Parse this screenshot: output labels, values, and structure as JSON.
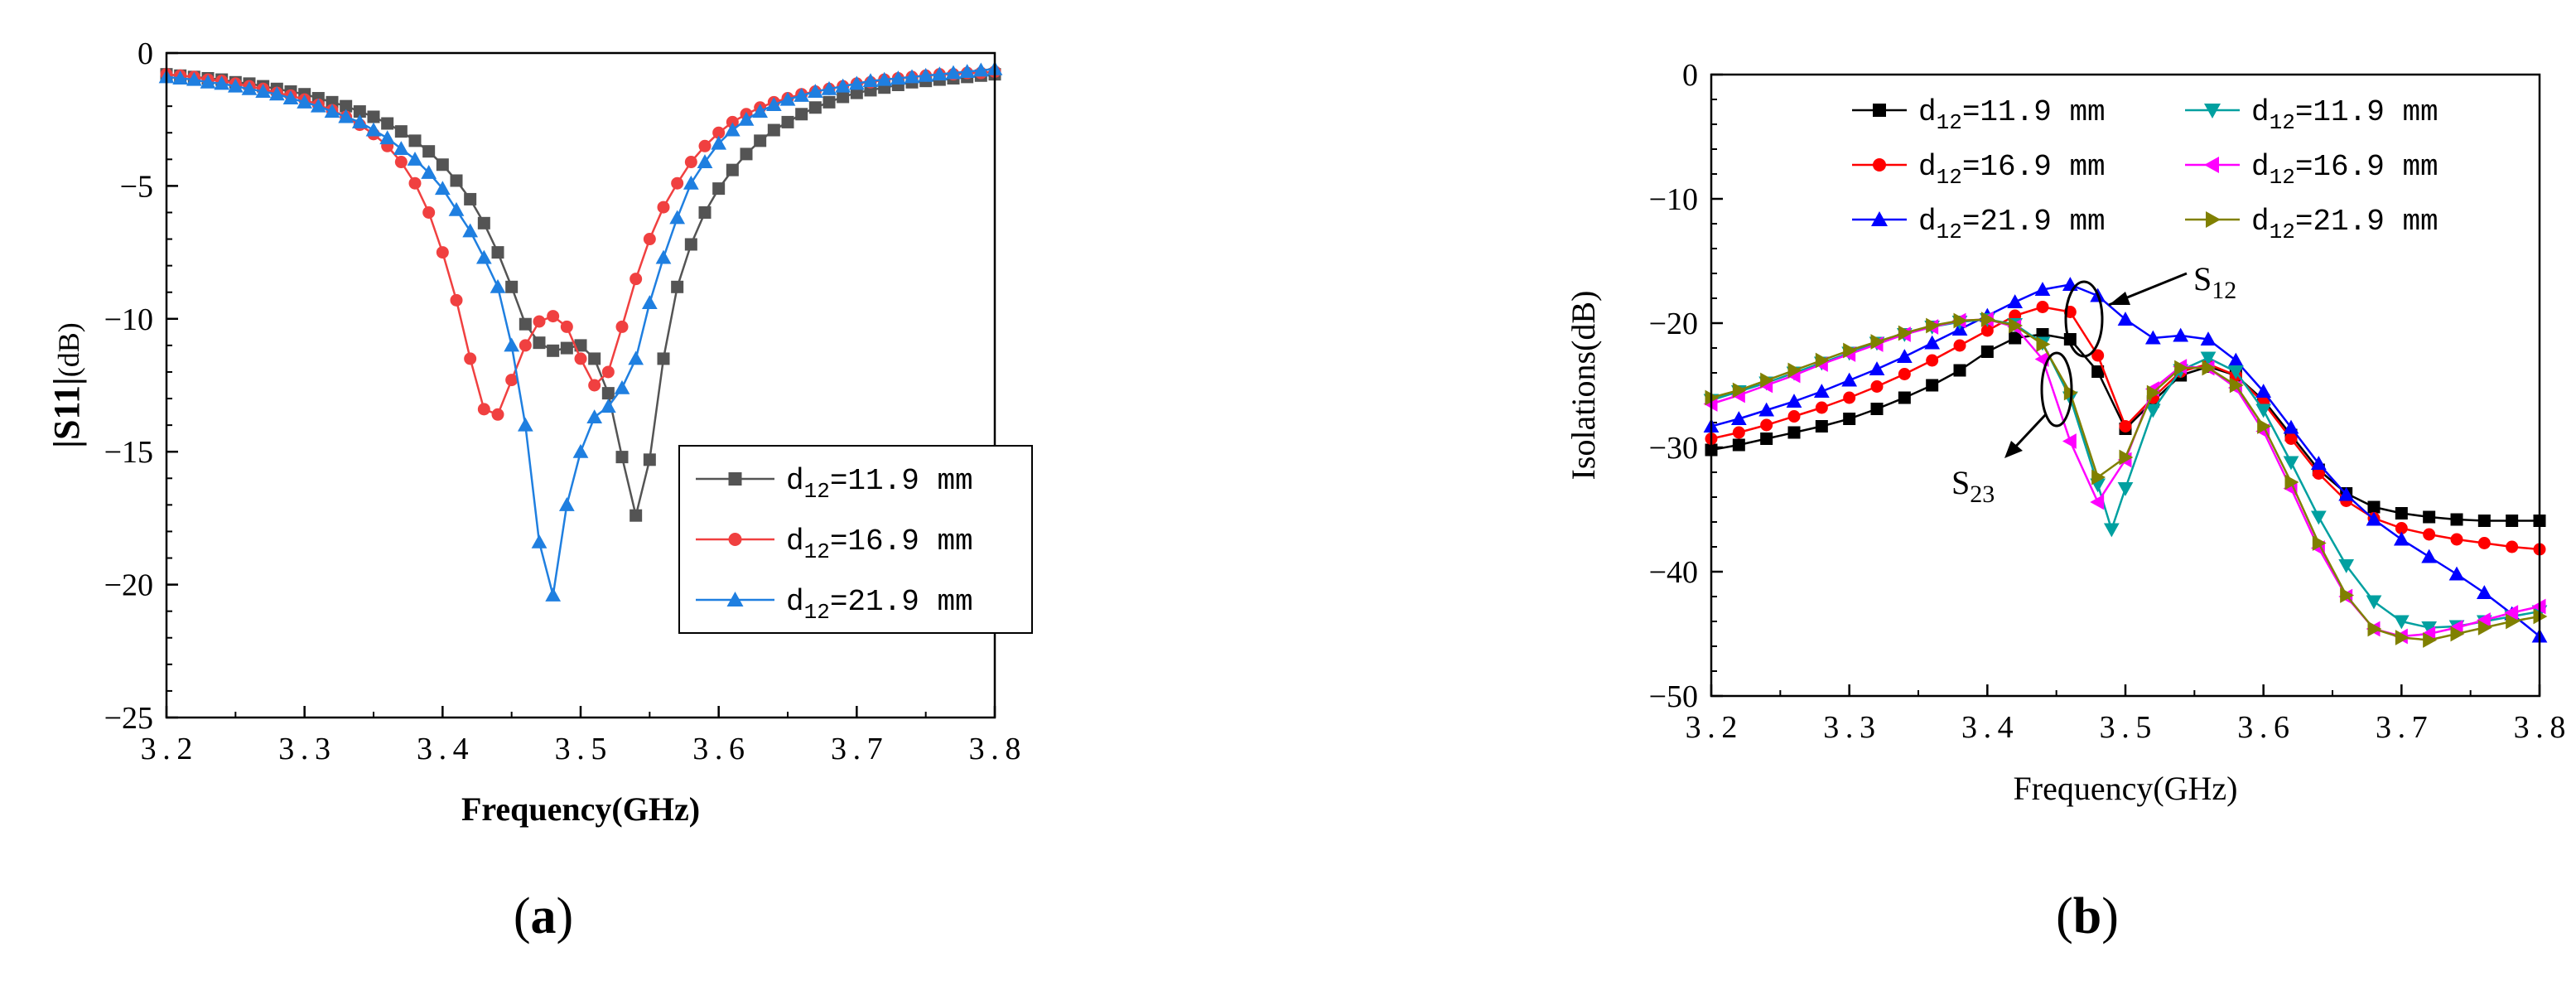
{
  "panels": {
    "a": {
      "label_open": "(",
      "label_letter": "a",
      "label_close": ")"
    },
    "b": {
      "label_open": "(",
      "label_letter": "b",
      "label_close": ")"
    }
  },
  "chart_data": [
    {
      "type": "line",
      "panel": "a",
      "title": "",
      "xlabel": "Frequency(GHz)",
      "ylabel_main": "|S11|",
      "ylabel_unit": "(dB)",
      "xlim": [
        3.2,
        3.8
      ],
      "ylim": [
        -25,
        0
      ],
      "xticks": [
        3.2,
        3.3,
        3.4,
        3.5,
        3.6,
        3.7,
        3.8
      ],
      "xtick_labels": [
        "3.2",
        "3.3",
        "3.4",
        "3.5",
        "3.6",
        "3.7",
        "3.8"
      ],
      "yticks": [
        0,
        -5,
        -10,
        -15,
        -20,
        -25
      ],
      "ytick_labels": [
        "0",
        "−5",
        "−10",
        "−15",
        "−20",
        "−25"
      ],
      "legend_position": "center-right",
      "series": [
        {
          "name": "d12=11.9 mm",
          "legend_prefix": "d",
          "legend_sub": "12",
          "legend_suffix": "=11.9 mm",
          "color": "#545454",
          "marker": "square",
          "x": [
            3.2,
            3.21,
            3.22,
            3.23,
            3.24,
            3.25,
            3.26,
            3.27,
            3.28,
            3.29,
            3.3,
            3.31,
            3.32,
            3.33,
            3.34,
            3.35,
            3.36,
            3.37,
            3.38,
            3.39,
            3.4,
            3.41,
            3.42,
            3.43,
            3.44,
            3.45,
            3.46,
            3.47,
            3.48,
            3.49,
            3.5,
            3.51,
            3.52,
            3.53,
            3.54,
            3.55,
            3.56,
            3.57,
            3.58,
            3.59,
            3.6,
            3.61,
            3.62,
            3.63,
            3.64,
            3.65,
            3.66,
            3.67,
            3.68,
            3.69,
            3.7,
            3.71,
            3.72,
            3.73,
            3.74,
            3.75,
            3.76,
            3.77,
            3.78,
            3.79,
            3.8
          ],
          "y": [
            -0.8,
            -0.85,
            -0.9,
            -0.95,
            -1.0,
            -1.1,
            -1.15,
            -1.25,
            -1.35,
            -1.45,
            -1.55,
            -1.7,
            -1.85,
            -2.0,
            -2.2,
            -2.4,
            -2.65,
            -2.95,
            -3.3,
            -3.7,
            -4.2,
            -4.8,
            -5.5,
            -6.4,
            -7.5,
            -8.8,
            -10.2,
            -10.9,
            -11.2,
            -11.1,
            -11.0,
            -11.5,
            -12.8,
            -15.2,
            -17.4,
            -15.3,
            -11.5,
            -8.8,
            -7.2,
            -6.0,
            -5.1,
            -4.4,
            -3.8,
            -3.3,
            -2.9,
            -2.6,
            -2.3,
            -2.05,
            -1.85,
            -1.65,
            -1.5,
            -1.4,
            -1.3,
            -1.2,
            -1.1,
            -1.05,
            -1.0,
            -0.95,
            -0.9,
            -0.85,
            -0.8
          ]
        },
        {
          "name": "d12=16.9 mm",
          "legend_prefix": "d",
          "legend_sub": "12",
          "legend_suffix": "=16.9 mm",
          "color": "#f04040",
          "marker": "circle",
          "x": [
            3.2,
            3.21,
            3.22,
            3.23,
            3.24,
            3.25,
            3.26,
            3.27,
            3.28,
            3.29,
            3.3,
            3.31,
            3.32,
            3.33,
            3.34,
            3.35,
            3.36,
            3.37,
            3.38,
            3.39,
            3.4,
            3.41,
            3.42,
            3.43,
            3.44,
            3.45,
            3.46,
            3.47,
            3.48,
            3.49,
            3.5,
            3.51,
            3.52,
            3.53,
            3.54,
            3.55,
            3.56,
            3.57,
            3.58,
            3.59,
            3.6,
            3.61,
            3.62,
            3.63,
            3.64,
            3.65,
            3.66,
            3.67,
            3.68,
            3.69,
            3.7,
            3.71,
            3.72,
            3.73,
            3.74,
            3.75,
            3.76,
            3.77,
            3.78,
            3.79,
            3.8
          ],
          "y": [
            -0.8,
            -0.85,
            -0.9,
            -1.0,
            -1.05,
            -1.15,
            -1.25,
            -1.35,
            -1.5,
            -1.6,
            -1.75,
            -1.95,
            -2.15,
            -2.4,
            -2.7,
            -3.05,
            -3.5,
            -4.1,
            -4.9,
            -6.0,
            -7.5,
            -9.3,
            -11.5,
            -13.4,
            -13.6,
            -12.3,
            -11.0,
            -10.1,
            -9.9,
            -10.3,
            -11.5,
            -12.5,
            -12.0,
            -10.3,
            -8.5,
            -7.0,
            -5.8,
            -4.9,
            -4.1,
            -3.5,
            -3.0,
            -2.6,
            -2.3,
            -2.05,
            -1.85,
            -1.7,
            -1.55,
            -1.45,
            -1.35,
            -1.25,
            -1.15,
            -1.1,
            -1.0,
            -0.95,
            -0.9,
            -0.85,
            -0.8,
            -0.8,
            -0.75,
            -0.75,
            -0.7
          ]
        },
        {
          "name": "d12=21.9 mm",
          "legend_prefix": "d",
          "legend_sub": "12",
          "legend_suffix": "=21.9 mm",
          "color": "#1f7fe0",
          "marker": "triangle",
          "x": [
            3.2,
            3.21,
            3.22,
            3.23,
            3.24,
            3.25,
            3.26,
            3.27,
            3.28,
            3.29,
            3.3,
            3.31,
            3.32,
            3.33,
            3.34,
            3.35,
            3.36,
            3.37,
            3.38,
            3.39,
            3.4,
            3.41,
            3.42,
            3.43,
            3.44,
            3.45,
            3.46,
            3.47,
            3.48,
            3.49,
            3.5,
            3.51,
            3.52,
            3.53,
            3.54,
            3.55,
            3.56,
            3.57,
            3.58,
            3.59,
            3.6,
            3.61,
            3.62,
            3.63,
            3.64,
            3.65,
            3.66,
            3.67,
            3.68,
            3.69,
            3.7,
            3.71,
            3.72,
            3.73,
            3.74,
            3.75,
            3.76,
            3.77,
            3.78,
            3.79,
            3.8
          ],
          "y": [
            -0.9,
            -0.95,
            -1.0,
            -1.1,
            -1.15,
            -1.25,
            -1.35,
            -1.45,
            -1.55,
            -1.7,
            -1.85,
            -2.0,
            -2.2,
            -2.4,
            -2.6,
            -2.9,
            -3.2,
            -3.6,
            -4.0,
            -4.5,
            -5.1,
            -5.9,
            -6.7,
            -7.7,
            -8.8,
            -11.0,
            -14.0,
            -18.4,
            -20.4,
            -17.0,
            -15.0,
            -13.7,
            -13.3,
            -12.6,
            -11.5,
            -9.4,
            -7.7,
            -6.2,
            -4.9,
            -4.1,
            -3.4,
            -2.9,
            -2.5,
            -2.2,
            -1.95,
            -1.75,
            -1.6,
            -1.45,
            -1.35,
            -1.25,
            -1.15,
            -1.05,
            -1.0,
            -0.95,
            -0.9,
            -0.85,
            -0.8,
            -0.75,
            -0.7,
            -0.65,
            -0.6
          ]
        }
      ]
    },
    {
      "type": "line",
      "panel": "b",
      "title": "",
      "xlabel": "Frequency(GHz)",
      "ylabel": "Isolations(dB)",
      "xlim": [
        3.2,
        3.8
      ],
      "ylim": [
        -50,
        0
      ],
      "xticks": [
        3.2,
        3.3,
        3.4,
        3.5,
        3.6,
        3.7,
        3.8
      ],
      "xtick_labels": [
        "3.2",
        "3.3",
        "3.4",
        "3.5",
        "3.6",
        "3.7",
        "3.8"
      ],
      "yticks": [
        0,
        -10,
        -20,
        -30,
        -40,
        -50
      ],
      "ytick_labels": [
        "0",
        "−10",
        "−20",
        "−30",
        "−40",
        "−50"
      ],
      "legend_position": "top",
      "annotations": [
        {
          "main": "S",
          "sub": "12",
          "target_x": 3.48,
          "target_y": -20
        },
        {
          "main": "S",
          "sub": "23",
          "target_x": 3.46,
          "target_y": -25.5
        }
      ],
      "series": [
        {
          "name": "d12=11.9 mm (S12)",
          "legend_prefix": "d",
          "legend_sub": "12",
          "legend_suffix": "=11.9 mm",
          "color": "#000000",
          "marker": "square",
          "x": [
            3.2,
            3.22,
            3.24,
            3.26,
            3.28,
            3.3,
            3.32,
            3.34,
            3.36,
            3.38,
            3.4,
            3.42,
            3.44,
            3.46,
            3.48,
            3.5,
            3.52,
            3.54,
            3.56,
            3.58,
            3.6,
            3.62,
            3.64,
            3.66,
            3.68,
            3.7,
            3.72,
            3.74,
            3.76,
            3.78,
            3.8
          ],
          "y": [
            -30.2,
            -29.8,
            -29.3,
            -28.8,
            -28.3,
            -27.7,
            -26.9,
            -26.0,
            -25.0,
            -23.8,
            -22.3,
            -21.2,
            -20.9,
            -21.3,
            -23.9,
            -28.5,
            -26.3,
            -24.2,
            -23.5,
            -24.2,
            -26.2,
            -29.0,
            -31.8,
            -33.7,
            -34.8,
            -35.3,
            -35.6,
            -35.8,
            -35.9,
            -35.9,
            -35.9
          ]
        },
        {
          "name": "d12=16.9 mm (S12)",
          "legend_prefix": "d",
          "legend_sub": "12",
          "legend_suffix": "=16.9 mm",
          "color": "#ff0000",
          "marker": "circle",
          "x": [
            3.2,
            3.22,
            3.24,
            3.26,
            3.28,
            3.3,
            3.32,
            3.34,
            3.36,
            3.38,
            3.4,
            3.42,
            3.44,
            3.46,
            3.48,
            3.5,
            3.52,
            3.54,
            3.56,
            3.58,
            3.6,
            3.62,
            3.64,
            3.66,
            3.68,
            3.7,
            3.72,
            3.74,
            3.76,
            3.78,
            3.8
          ],
          "y": [
            -29.3,
            -28.8,
            -28.2,
            -27.5,
            -26.8,
            -26.0,
            -25.1,
            -24.1,
            -23.0,
            -21.8,
            -20.6,
            -19.4,
            -18.7,
            -19.1,
            -22.6,
            -28.3,
            -26.0,
            -23.9,
            -23.3,
            -24.2,
            -26.4,
            -29.3,
            -32.1,
            -34.3,
            -35.7,
            -36.5,
            -37.0,
            -37.4,
            -37.7,
            -38.0,
            -38.2
          ]
        },
        {
          "name": "d12=21.9 mm (S12)",
          "legend_prefix": "d",
          "legend_sub": "12",
          "legend_suffix": "=21.9 mm",
          "color": "#0000ff",
          "marker": "triangle",
          "x": [
            3.2,
            3.22,
            3.24,
            3.26,
            3.28,
            3.3,
            3.32,
            3.34,
            3.36,
            3.38,
            3.4,
            3.42,
            3.44,
            3.46,
            3.48,
            3.5,
            3.52,
            3.54,
            3.56,
            3.58,
            3.6,
            3.62,
            3.64,
            3.66,
            3.68,
            3.7,
            3.72,
            3.74,
            3.76,
            3.78,
            3.8
          ],
          "y": [
            -28.3,
            -27.7,
            -27.0,
            -26.3,
            -25.5,
            -24.6,
            -23.7,
            -22.7,
            -21.6,
            -20.5,
            -19.4,
            -18.3,
            -17.3,
            -16.9,
            -17.8,
            -19.7,
            -21.2,
            -21.0,
            -21.3,
            -23.0,
            -25.5,
            -28.4,
            -31.3,
            -33.8,
            -35.8,
            -37.4,
            -38.8,
            -40.2,
            -41.7,
            -43.4,
            -45.2
          ]
        },
        {
          "name": "d12=11.9 mm (S23)",
          "legend_prefix": "d",
          "legend_sub": "12",
          "legend_suffix": "=11.9 mm",
          "color": "#00a0a0",
          "marker": "triangle-down",
          "x": [
            3.2,
            3.22,
            3.24,
            3.26,
            3.28,
            3.3,
            3.32,
            3.34,
            3.36,
            3.38,
            3.4,
            3.42,
            3.44,
            3.46,
            3.48,
            3.49,
            3.5,
            3.52,
            3.54,
            3.56,
            3.58,
            3.6,
            3.62,
            3.64,
            3.66,
            3.68,
            3.7,
            3.72,
            3.74,
            3.76,
            3.78,
            3.8
          ],
          "y": [
            -26.2,
            -25.5,
            -24.8,
            -24.0,
            -23.2,
            -22.4,
            -21.6,
            -20.9,
            -20.3,
            -19.9,
            -19.7,
            -20.1,
            -21.6,
            -26.0,
            -33.0,
            -36.6,
            -33.3,
            -27.0,
            -23.8,
            -22.8,
            -23.9,
            -27.0,
            -31.2,
            -35.6,
            -39.5,
            -42.4,
            -44.0,
            -44.5,
            -44.4,
            -44.0,
            -43.6,
            -43.2
          ]
        },
        {
          "name": "d12=16.9 mm (S23)",
          "legend_prefix": "d",
          "legend_sub": "12",
          "legend_suffix": "=16.9 mm",
          "color": "#ff00ff",
          "marker": "triangle-left",
          "x": [
            3.2,
            3.22,
            3.24,
            3.26,
            3.28,
            3.3,
            3.32,
            3.34,
            3.36,
            3.38,
            3.4,
            3.42,
            3.44,
            3.46,
            3.48,
            3.5,
            3.52,
            3.54,
            3.56,
            3.58,
            3.6,
            3.62,
            3.64,
            3.66,
            3.68,
            3.7,
            3.72,
            3.74,
            3.76,
            3.78,
            3.8
          ],
          "y": [
            -26.5,
            -25.8,
            -25.0,
            -24.2,
            -23.3,
            -22.5,
            -21.7,
            -20.9,
            -20.3,
            -19.8,
            -19.7,
            -20.3,
            -22.9,
            -29.5,
            -34.4,
            -31.0,
            -25.3,
            -23.5,
            -23.6,
            -25.2,
            -28.7,
            -33.3,
            -38.1,
            -42.0,
            -44.6,
            -45.2,
            -45.0,
            -44.5,
            -43.9,
            -43.3,
            -42.8
          ]
        },
        {
          "name": "d12=21.9 mm (S23)",
          "legend_prefix": "d",
          "legend_sub": "12",
          "legend_suffix": "=21.9 mm",
          "color": "#808000",
          "marker": "triangle-right",
          "x": [
            3.2,
            3.22,
            3.24,
            3.26,
            3.28,
            3.3,
            3.32,
            3.34,
            3.36,
            3.38,
            3.4,
            3.42,
            3.44,
            3.46,
            3.48,
            3.5,
            3.52,
            3.54,
            3.56,
            3.58,
            3.6,
            3.62,
            3.64,
            3.66,
            3.68,
            3.7,
            3.72,
            3.74,
            3.76,
            3.78,
            3.8
          ],
          "y": [
            -26.0,
            -25.4,
            -24.6,
            -23.8,
            -23.0,
            -22.2,
            -21.5,
            -20.8,
            -20.2,
            -19.8,
            -19.7,
            -20.2,
            -21.7,
            -25.6,
            -32.4,
            -30.8,
            -25.6,
            -23.6,
            -23.6,
            -25.0,
            -28.3,
            -32.8,
            -37.7,
            -41.9,
            -44.6,
            -45.3,
            -45.5,
            -45.0,
            -44.5,
            -44.0,
            -43.6
          ]
        }
      ]
    }
  ]
}
